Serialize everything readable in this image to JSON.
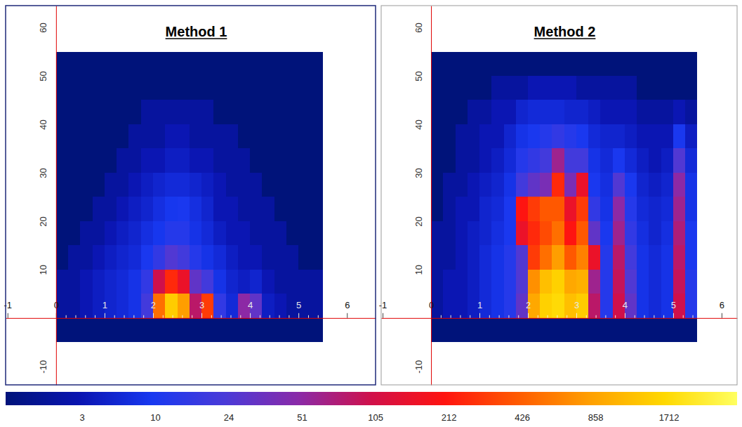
{
  "chart_data": [
    {
      "type": "heatmap",
      "title": "Method 1",
      "x_edges": [
        0,
        0.25,
        0.5,
        0.75,
        1,
        1.25,
        1.5,
        1.75,
        2,
        2.25,
        2.5,
        2.75,
        3,
        3.25,
        3.5,
        3.75,
        4,
        4.25,
        4.5,
        4.75,
        5,
        5.25,
        5.5
      ],
      "y_edges": [
        -5,
        0,
        5,
        10,
        15,
        20,
        25,
        30,
        35,
        40,
        45,
        50,
        55
      ],
      "z": [
        [
          1,
          1,
          1,
          1,
          1,
          1,
          1,
          1,
          1,
          1,
          1,
          1,
          1,
          1,
          1,
          1,
          1,
          1,
          1,
          1,
          1,
          1
        ],
        [
          2,
          2,
          3,
          4,
          5,
          6,
          8,
          20,
          500,
          1400,
          800,
          80,
          300,
          15,
          6,
          50,
          30,
          4,
          3,
          2,
          2,
          2
        ],
        [
          2,
          2,
          3,
          4,
          5,
          6,
          8,
          15,
          100,
          250,
          150,
          30,
          20,
          8,
          5,
          4,
          5,
          3,
          2,
          2,
          2,
          2
        ],
        [
          1,
          2,
          2,
          3,
          4,
          5,
          6,
          10,
          15,
          25,
          20,
          12,
          8,
          6,
          4,
          3,
          3,
          2,
          2,
          2,
          1,
          1
        ],
        [
          1,
          1,
          2,
          2,
          3,
          4,
          5,
          7,
          9,
          12,
          12,
          8,
          6,
          4,
          3,
          3,
          2,
          2,
          2,
          1,
          1,
          1
        ],
        [
          1,
          1,
          1,
          2,
          2,
          3,
          4,
          5,
          7,
          9,
          10,
          7,
          5,
          3,
          3,
          2,
          2,
          2,
          1,
          1,
          1,
          1
        ],
        [
          1,
          1,
          1,
          1,
          2,
          2,
          3,
          4,
          5,
          6,
          6,
          5,
          4,
          3,
          2,
          2,
          2,
          1,
          1,
          1,
          1,
          1
        ],
        [
          1,
          1,
          1,
          1,
          1,
          2,
          2,
          3,
          3,
          4,
          4,
          3,
          3,
          2,
          2,
          2,
          1,
          1,
          1,
          1,
          1,
          1
        ],
        [
          1,
          1,
          1,
          1,
          1,
          1,
          2,
          2,
          2,
          3,
          3,
          2,
          2,
          2,
          2,
          1,
          1,
          1,
          1,
          1,
          1,
          1
        ],
        [
          1,
          1,
          1,
          1,
          1,
          1,
          1,
          2,
          2,
          2,
          2,
          2,
          2,
          1,
          1,
          1,
          1,
          1,
          1,
          1,
          1,
          1
        ],
        [
          1,
          1,
          1,
          1,
          1,
          1,
          1,
          1,
          1,
          1,
          1,
          1,
          1,
          1,
          1,
          1,
          1,
          1,
          1,
          1,
          1,
          1
        ],
        [
          1,
          1,
          1,
          1,
          1,
          1,
          1,
          1,
          1,
          1,
          1,
          1,
          1,
          1,
          1,
          1,
          1,
          1,
          1,
          1,
          1,
          1
        ]
      ],
      "xlim": [
        -1.04,
        6.59
      ],
      "ylim": [
        -13.8,
        64.5
      ],
      "xticks": [
        -1,
        0,
        1,
        2,
        3,
        4,
        5,
        6
      ],
      "xminorticks": [
        0.2,
        0.4,
        0.6,
        0.8,
        1.2,
        1.4,
        1.6,
        1.8,
        2.2,
        2.4,
        2.6,
        2.8,
        3.2,
        3.4,
        3.6,
        3.8,
        4.2,
        4.4,
        4.6,
        4.8,
        5.2,
        5.4
      ],
      "yticks": [
        -10,
        10,
        20,
        30,
        40,
        50,
        60
      ]
    },
    {
      "type": "heatmap",
      "title": "Method 2",
      "x_edges": [
        0,
        0.25,
        0.5,
        0.75,
        1,
        1.25,
        1.5,
        1.75,
        2,
        2.25,
        2.5,
        2.75,
        3,
        3.25,
        3.5,
        3.75,
        4,
        4.25,
        4.5,
        4.75,
        5,
        5.25,
        5.5
      ],
      "y_edges": [
        -5,
        0,
        5,
        10,
        15,
        20,
        25,
        30,
        35,
        40,
        45,
        50,
        55
      ],
      "z": [
        [
          1,
          1,
          1,
          1,
          1,
          1,
          1,
          1,
          1,
          1,
          1,
          1,
          1,
          1,
          1,
          1,
          1,
          1,
          1,
          1,
          1,
          1
        ],
        [
          2,
          3,
          3,
          4,
          6,
          8,
          12,
          30,
          900,
          1500,
          1700,
          1200,
          1400,
          80,
          12,
          100,
          30,
          8,
          6,
          8,
          100,
          12
        ],
        [
          2,
          3,
          3,
          4,
          6,
          8,
          12,
          25,
          700,
          1200,
          1500,
          900,
          1000,
          60,
          12,
          90,
          25,
          8,
          6,
          8,
          90,
          12
        ],
        [
          2,
          2,
          3,
          4,
          6,
          8,
          12,
          25,
          300,
          500,
          800,
          400,
          600,
          150,
          12,
          80,
          20,
          8,
          6,
          8,
          80,
          10
        ],
        [
          2,
          2,
          3,
          4,
          5,
          7,
          10,
          150,
          250,
          350,
          500,
          200,
          400,
          30,
          10,
          60,
          15,
          7,
          5,
          7,
          70,
          10
        ],
        [
          1,
          2,
          3,
          3,
          5,
          6,
          10,
          200,
          300,
          400,
          400,
          150,
          300,
          15,
          8,
          50,
          12,
          6,
          5,
          6,
          60,
          8
        ],
        [
          1,
          2,
          2,
          3,
          4,
          5,
          8,
          20,
          30,
          40,
          250,
          40,
          150,
          10,
          7,
          25,
          10,
          5,
          4,
          5,
          50,
          8
        ],
        [
          1,
          1,
          2,
          2,
          3,
          4,
          6,
          12,
          15,
          20,
          60,
          20,
          20,
          8,
          6,
          10,
          6,
          4,
          3,
          4,
          25,
          6
        ],
        [
          1,
          1,
          2,
          2,
          3,
          3,
          5,
          8,
          10,
          12,
          15,
          12,
          10,
          6,
          5,
          5,
          4,
          3,
          3,
          3,
          10,
          4
        ],
        [
          1,
          1,
          1,
          2,
          2,
          3,
          3,
          5,
          6,
          6,
          6,
          5,
          5,
          4,
          3,
          3,
          3,
          2,
          2,
          2,
          3,
          2
        ],
        [
          1,
          1,
          1,
          1,
          1,
          2,
          2,
          2,
          3,
          3,
          3,
          3,
          2,
          2,
          2,
          2,
          2,
          1,
          1,
          1,
          1,
          1
        ],
        [
          1,
          1,
          1,
          1,
          1,
          1,
          1,
          1,
          1,
          1,
          1,
          1,
          1,
          1,
          1,
          1,
          1,
          1,
          1,
          1,
          1,
          1
        ]
      ],
      "xlim": [
        -1.03,
        6.32
      ],
      "ylim": [
        -13.8,
        64.5
      ],
      "xticks": [
        -1,
        0,
        1,
        2,
        3,
        4,
        5,
        6
      ],
      "xminorticks": [
        0.2,
        0.4,
        0.6,
        0.8,
        1.2,
        1.4,
        1.6,
        1.8,
        2.2,
        2.4,
        2.6,
        2.8,
        3.2,
        3.4,
        3.6,
        3.8,
        4.2,
        4.4,
        4.6,
        4.8,
        5.2,
        5.4
      ],
      "yticks": [
        -10,
        10,
        20,
        30,
        40,
        50,
        60
      ]
    }
  ],
  "colorbar": {
    "range": [
      1,
      3300
    ],
    "ticks": [
      3,
      10,
      24,
      51,
      105,
      212,
      426,
      858,
      1712
    ]
  }
}
